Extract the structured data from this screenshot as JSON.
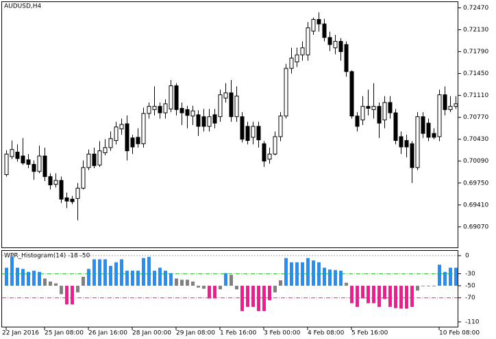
{
  "chart_data": [
    {
      "type": "candlestick",
      "title": "AUDUSD,H4",
      "categories": [
        "22 Jan 2016",
        null,
        null,
        null,
        null,
        null,
        null,
        "25 Jan 08:00",
        null,
        null,
        null,
        null,
        null,
        null,
        null,
        "26 Jan 16:00",
        null,
        null,
        null,
        null,
        null,
        null,
        null,
        "28 Jan 00:00",
        null,
        null,
        null,
        null,
        null,
        null,
        null,
        "29 Jan 08:00",
        null,
        null,
        null,
        null,
        null,
        null,
        null,
        "1 Feb 16:00",
        null,
        null,
        null,
        null,
        null,
        null,
        null,
        "3 Feb 00:00",
        null,
        null,
        null,
        null,
        null,
        null,
        null,
        "4 Feb 08:00",
        null,
        null,
        null,
        null,
        null,
        null,
        null,
        "5 Feb 16:00",
        null,
        null,
        null,
        null,
        null,
        null,
        null,
        null,
        null,
        null,
        null,
        null,
        null,
        null,
        null,
        "10 Feb 08:00",
        null,
        null,
        null
      ],
      "open": [
        0.6988,
        0.7016,
        0.7023,
        0.7017,
        0.7011,
        0.7004,
        0.6993,
        0.7017,
        0.6985,
        0.6973,
        0.6979,
        0.6952,
        0.695,
        0.6951,
        0.6967,
        0.6999,
        0.702,
        0.7003,
        0.7022,
        0.703,
        0.7041,
        0.7059,
        0.7067,
        0.7045,
        0.7046,
        0.7036,
        0.7083,
        0.7089,
        0.7094,
        0.7084,
        0.709,
        0.7126,
        0.7091,
        0.7089,
        0.7079,
        0.7081,
        0.7078,
        0.7063,
        0.7081,
        0.7078,
        0.7107,
        0.7115,
        0.7078,
        0.7078,
        0.7063,
        0.7046,
        0.7063,
        0.7036,
        0.7012,
        0.702,
        0.7047,
        0.7079,
        0.7153,
        0.7163,
        0.7174,
        0.7174,
        0.7211,
        0.7229,
        0.7222,
        0.7201,
        0.7185,
        0.7195,
        0.719,
        0.7148,
        0.7079,
        0.7073,
        0.7094,
        0.7089,
        0.7094,
        0.7073,
        0.71,
        0.7084,
        0.7047,
        0.7041,
        0.7036,
        0.6999,
        0.7078,
        0.7068,
        0.7052,
        0.7047,
        0.7112,
        0.7089,
        0.7094
      ],
      "high": [
        0.7026,
        0.7041,
        0.7035,
        0.7045,
        0.702,
        0.701,
        0.7033,
        0.703,
        0.699,
        0.699,
        0.6985,
        0.696,
        0.6955,
        0.6975,
        0.701,
        0.7027,
        0.703,
        0.704,
        0.7043,
        0.7055,
        0.707,
        0.7075,
        0.708,
        0.705,
        0.706,
        0.7092,
        0.71,
        0.7125,
        0.71,
        0.7105,
        0.7135,
        0.713,
        0.71,
        0.7095,
        0.7095,
        0.7088,
        0.709,
        0.709,
        0.709,
        0.712,
        0.713,
        0.7135,
        0.7125,
        0.7085,
        0.707,
        0.707,
        0.707,
        0.704,
        0.703,
        0.7055,
        0.7085,
        0.716,
        0.7185,
        0.7185,
        0.7195,
        0.7225,
        0.7232,
        0.724,
        0.723,
        0.721,
        0.7205,
        0.72,
        0.7195,
        0.715,
        0.7085,
        0.711,
        0.712,
        0.713,
        0.71,
        0.711,
        0.711,
        0.709,
        0.7055,
        0.705,
        0.704,
        0.7085,
        0.7085,
        0.7075,
        0.706,
        0.712,
        0.7125,
        0.711,
        0.711
      ],
      "low": [
        0.6985,
        0.7012,
        0.7008,
        0.7003,
        0.6998,
        0.698,
        0.699,
        0.6978,
        0.6965,
        0.6968,
        0.6944,
        0.6936,
        0.6942,
        0.6917,
        0.6965,
        0.6995,
        0.6998,
        0.7,
        0.7018,
        0.7025,
        0.7035,
        0.705,
        0.701,
        0.702,
        0.703,
        0.703,
        0.7075,
        0.708,
        0.7075,
        0.7075,
        0.7085,
        0.708,
        0.7065,
        0.706,
        0.7065,
        0.7048,
        0.7055,
        0.7055,
        0.706,
        0.707,
        0.71,
        0.707,
        0.707,
        0.7038,
        0.7035,
        0.7035,
        0.703,
        0.7,
        0.7005,
        0.7018,
        0.704,
        0.7075,
        0.7145,
        0.7155,
        0.7165,
        0.7165,
        0.7205,
        0.721,
        0.7195,
        0.718,
        0.7175,
        0.7165,
        0.714,
        0.7075,
        0.7055,
        0.7065,
        0.708,
        0.7075,
        0.7045,
        0.706,
        0.7075,
        0.7035,
        0.702,
        0.7015,
        0.6975,
        0.6995,
        0.7045,
        0.704,
        0.7043,
        0.704,
        0.708,
        0.7085,
        0.709
      ],
      "close": [
        0.702,
        0.7027,
        0.7013,
        0.7006,
        0.7004,
        0.6993,
        0.7017,
        0.6985,
        0.6972,
        0.6979,
        0.695,
        0.6947,
        0.6946,
        0.6967,
        0.6999,
        0.702,
        0.7002,
        0.7025,
        0.703,
        0.7044,
        0.7062,
        0.7066,
        0.7025,
        0.7031,
        0.7036,
        0.7083,
        0.7094,
        0.7094,
        0.7084,
        0.7098,
        0.7126,
        0.7089,
        0.7084,
        0.708,
        0.7087,
        0.7063,
        0.7063,
        0.7078,
        0.7068,
        0.7112,
        0.7115,
        0.7078,
        0.711,
        0.7043,
        0.7041,
        0.7063,
        0.7042,
        0.7009,
        0.702,
        0.7047,
        0.7079,
        0.7153,
        0.7169,
        0.7174,
        0.7185,
        0.7216,
        0.7229,
        0.7222,
        0.7201,
        0.719,
        0.7195,
        0.7179,
        0.7148,
        0.7079,
        0.7063,
        0.7094,
        0.7091,
        0.7094,
        0.7068,
        0.71,
        0.7084,
        0.7041,
        0.7031,
        0.7031,
        0.6999,
        0.7078,
        0.7052,
        0.7046,
        0.7046,
        0.7112,
        0.7089,
        0.7094,
        0.7098
      ],
      "up_color": "#ffffff",
      "down_color": "#000000",
      "ylim": [
        0.6875,
        0.7256
      ],
      "yticks": [
        {
          "value": 0.7247,
          "label": "0.72470"
        },
        {
          "value": 0.7213,
          "label": "0.72130"
        },
        {
          "value": 0.7179,
          "label": "0.71790"
        },
        {
          "value": 0.7145,
          "label": "0.71450"
        },
        {
          "value": 0.7111,
          "label": "0.71110"
        },
        {
          "value": 0.7077,
          "label": "0.70770"
        },
        {
          "value": 0.7043,
          "label": "0.70430"
        },
        {
          "value": 0.7009,
          "label": "0.70090"
        },
        {
          "value": 0.6975,
          "label": "0.69750"
        },
        {
          "value": 0.6941,
          "label": "0.69410"
        },
        {
          "value": 0.6907,
          "label": "0.69070"
        }
      ]
    },
    {
      "type": "bar",
      "title": "WPR_Histogram(14) -18 -50",
      "values": [
        -20,
        -1,
        -20,
        -22,
        -27,
        -25,
        -27,
        -38,
        -43,
        -46,
        -64,
        -81,
        -81,
        -61,
        -35,
        -22,
        -6,
        -6,
        -6,
        -17,
        -11,
        -6,
        -25,
        -25,
        -25,
        -4,
        -2,
        -25,
        -20,
        -25,
        -29,
        -38,
        -40,
        -40,
        -43,
        -53,
        -55,
        -71,
        -71,
        -56,
        -29,
        -32,
        -56,
        -92,
        -85,
        -85,
        -92,
        -92,
        -74,
        -61,
        -41,
        -4,
        -11,
        -11,
        -11,
        -4,
        -8,
        -11,
        -20,
        -23,
        -24,
        -25,
        -45,
        -79,
        -85,
        -71,
        -79,
        -79,
        -85,
        -72,
        -85,
        -87,
        -88,
        -88,
        -85,
        -58,
        -51,
        -51,
        -51,
        -15,
        -27,
        -20,
        -20
      ],
      "base": -50,
      "upper_level": -30,
      "lower_level": -70,
      "upper_color": "#1e90ff",
      "middle_color": "#808080",
      "lower_color": "#ff1493",
      "upper_line_color": "#32cd32",
      "lower_line_color": "#ff1493",
      "zero_line_color": "#a0a0a0",
      "ylim": [
        -118,
        8
      ],
      "yticks": [
        0,
        -30,
        -50,
        -70,
        -110
      ]
    }
  ]
}
